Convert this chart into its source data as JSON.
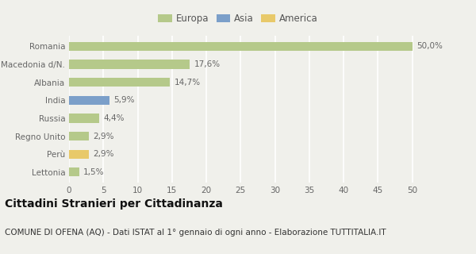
{
  "categories": [
    "Lettonia",
    "Perù",
    "Regno Unito",
    "Russia",
    "India",
    "Albania",
    "Macedonia d/N.",
    "Romania"
  ],
  "values": [
    1.5,
    2.9,
    2.9,
    4.4,
    5.9,
    14.7,
    17.6,
    50.0
  ],
  "labels": [
    "1,5%",
    "2,9%",
    "2,9%",
    "4,4%",
    "5,9%",
    "14,7%",
    "17,6%",
    "50,0%"
  ],
  "colors": [
    "#b5c98a",
    "#e8c96a",
    "#b5c98a",
    "#b5c98a",
    "#7b9fc9",
    "#b5c98a",
    "#b5c98a",
    "#b5c98a"
  ],
  "legend_items": [
    {
      "label": "Europa",
      "color": "#b5c98a"
    },
    {
      "label": "Asia",
      "color": "#7b9fc9"
    },
    {
      "label": "America",
      "color": "#e8c96a"
    }
  ],
  "xlim": [
    0,
    52
  ],
  "xticks": [
    0,
    5,
    10,
    15,
    20,
    25,
    30,
    35,
    40,
    45,
    50
  ],
  "title": "Cittadini Stranieri per Cittadinanza",
  "subtitle": "COMUNE DI OFENA (AQ) - Dati ISTAT al 1° gennaio di ogni anno - Elaborazione TUTTITALIA.IT",
  "bg_color": "#f0f0eb",
  "bar_height": 0.5,
  "title_fontsize": 10,
  "subtitle_fontsize": 7.5,
  "label_fontsize": 7.5,
  "tick_fontsize": 7.5,
  "legend_fontsize": 8.5
}
